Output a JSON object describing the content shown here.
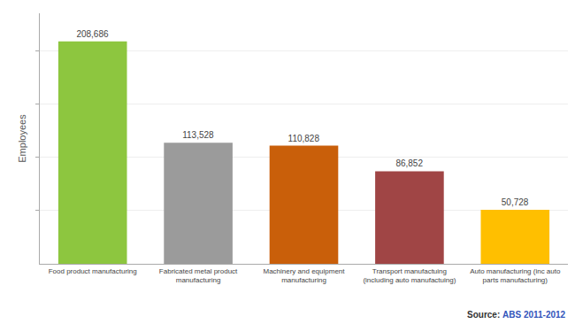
{
  "chart_data": {
    "type": "bar",
    "categories": [
      "Food product manufacturing",
      "Fabricated metal product\nmanufacturing",
      "Machinery and equipment\nmanufacturing",
      "Transport manufactuing\n(including auto manufactuing)",
      "Auto manufacturing (inc auto\nparts manufacturing)"
    ],
    "values": [
      208686,
      113528,
      110828,
      86852,
      50728
    ],
    "value_labels": [
      "208,686",
      "113,528",
      "110,828",
      "86,852",
      "50,728"
    ],
    "colors": [
      "#8dc63f",
      "#9b9b9b",
      "#c95f0a",
      "#a04545",
      "#ffbf00"
    ],
    "ylabel": "Employees",
    "ylim": [
      0,
      235000
    ],
    "yticks": [
      50000,
      100000,
      150000,
      200000
    ],
    "grid": true,
    "data_labels": true,
    "tick_labels": "x",
    "annotations": [
      "Source:",
      "ABS 2011-2012"
    ]
  }
}
